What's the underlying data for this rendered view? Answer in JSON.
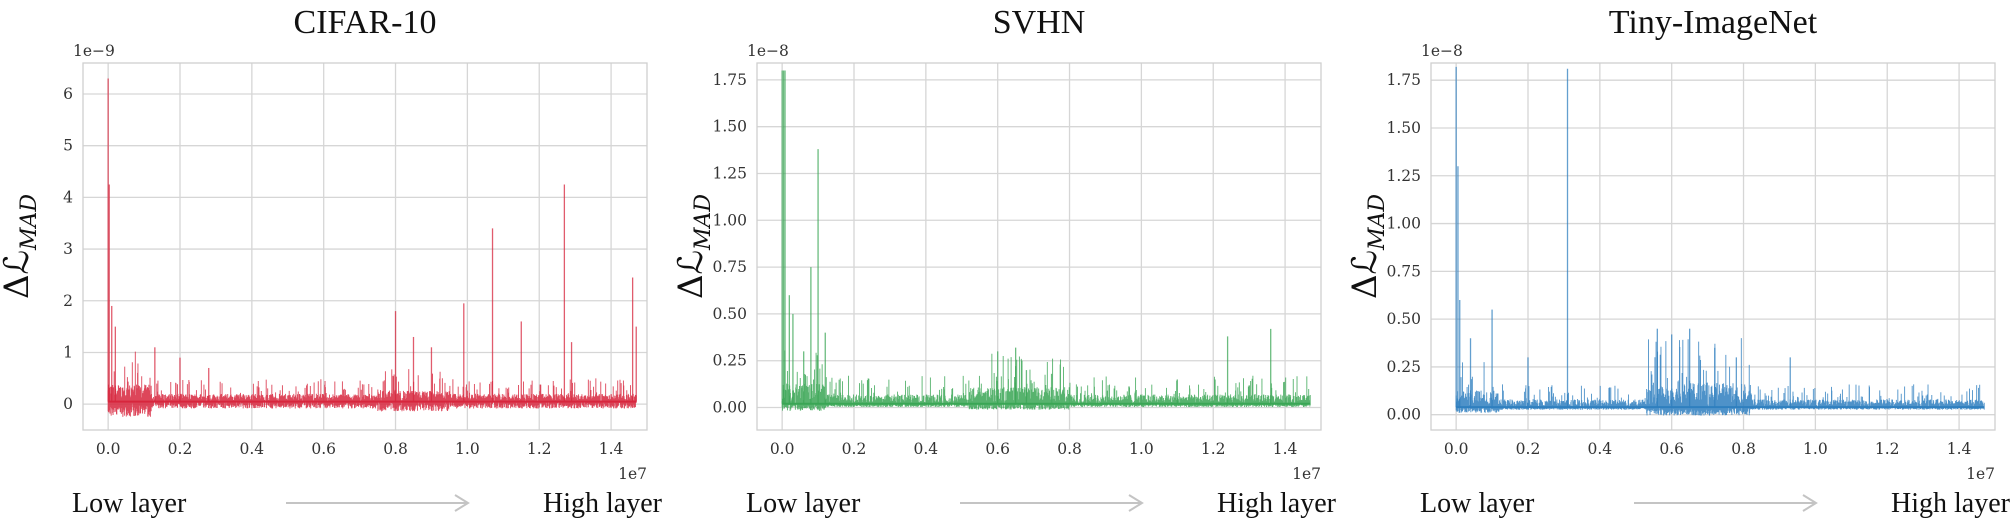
{
  "chart_data": [
    {
      "type": "line",
      "title": "CIFAR-10",
      "ylabel": "ΔℒMAD",
      "y_multiplier": "1e−9",
      "x_multiplier": "1e7",
      "xlim": [
        -0.07,
        1.5
      ],
      "ylim": [
        -0.5,
        6.6
      ],
      "xticks": [
        0.0,
        0.2,
        0.4,
        0.6,
        0.8,
        1.0,
        1.2,
        1.4
      ],
      "xtick_labels": [
        "0.0",
        "0.2",
        "0.4",
        "0.6",
        "0.8",
        "1.0",
        "1.2",
        "1.4"
      ],
      "yticks": [
        0,
        1,
        2,
        3,
        4,
        5,
        6
      ],
      "ytick_labels": [
        "0",
        "1",
        "2",
        "3",
        "4",
        "5",
        "6"
      ],
      "grid": true,
      "color": "#d7263d",
      "baseline": 0.05,
      "noise": 0.15,
      "x_end": 1.47,
      "peaks": [
        {
          "x": 0.0,
          "y": 6.3
        },
        {
          "x": 0.003,
          "y": 4.25
        },
        {
          "x": 0.01,
          "y": 1.9
        },
        {
          "x": 0.02,
          "y": 1.5
        },
        {
          "x": 0.13,
          "y": 1.1
        },
        {
          "x": 0.2,
          "y": 0.9
        },
        {
          "x": 0.28,
          "y": 0.7
        },
        {
          "x": 0.8,
          "y": 1.8
        },
        {
          "x": 0.85,
          "y": 1.3
        },
        {
          "x": 0.9,
          "y": 1.1
        },
        {
          "x": 0.99,
          "y": 1.95
        },
        {
          "x": 1.07,
          "y": 3.4
        },
        {
          "x": 1.15,
          "y": 1.6
        },
        {
          "x": 1.27,
          "y": 4.25
        },
        {
          "x": 1.29,
          "y": 1.2
        },
        {
          "x": 1.46,
          "y": 2.45
        },
        {
          "x": 1.47,
          "y": 1.5
        }
      ]
    },
    {
      "type": "line",
      "title": "SVHN",
      "ylabel": "ΔℒMAD",
      "y_multiplier": "1e−8",
      "x_multiplier": "1e7",
      "xlim": [
        -0.07,
        1.5
      ],
      "ylim": [
        -0.12,
        1.84
      ],
      "xticks": [
        0.0,
        0.2,
        0.4,
        0.6,
        0.8,
        1.0,
        1.2,
        1.4
      ],
      "xtick_labels": [
        "0.0",
        "0.2",
        "0.4",
        "0.6",
        "0.8",
        "1.0",
        "1.2",
        "1.4"
      ],
      "yticks": [
        0.0,
        0.25,
        0.5,
        0.75,
        1.0,
        1.25,
        1.5,
        1.75
      ],
      "ytick_labels": [
        "0.00",
        "0.25",
        "0.50",
        "0.75",
        "1.00",
        "1.25",
        "1.50",
        "1.75"
      ],
      "grid": true,
      "color": "#3aa655",
      "baseline": 0.02,
      "noise": 0.05,
      "x_end": 1.47,
      "peaks": [
        {
          "x": 0.0,
          "y": 1.8
        },
        {
          "x": 0.004,
          "y": 1.8
        },
        {
          "x": 0.008,
          "y": 1.8
        },
        {
          "x": 0.02,
          "y": 0.6
        },
        {
          "x": 0.03,
          "y": 0.5
        },
        {
          "x": 0.06,
          "y": 0.3
        },
        {
          "x": 0.08,
          "y": 0.75
        },
        {
          "x": 0.1,
          "y": 1.38
        },
        {
          "x": 0.12,
          "y": 0.4
        },
        {
          "x": 0.6,
          "y": 0.3
        },
        {
          "x": 0.65,
          "y": 0.32
        },
        {
          "x": 0.68,
          "y": 0.2
        },
        {
          "x": 0.75,
          "y": 0.18
        },
        {
          "x": 1.1,
          "y": 0.15
        },
        {
          "x": 1.24,
          "y": 0.38
        },
        {
          "x": 1.36,
          "y": 0.42
        }
      ]
    },
    {
      "type": "line",
      "title": "Tiny-ImageNet",
      "ylabel": "ΔℒMAD",
      "y_multiplier": "1e−8",
      "x_multiplier": "1e7",
      "xlim": [
        -0.07,
        1.5
      ],
      "ylim": [
        -0.08,
        1.84
      ],
      "xticks": [
        0.0,
        0.2,
        0.4,
        0.6,
        0.8,
        1.0,
        1.2,
        1.4
      ],
      "xtick_labels": [
        "0.0",
        "0.2",
        "0.4",
        "0.6",
        "0.8",
        "1.0",
        "1.2",
        "1.4"
      ],
      "yticks": [
        0.0,
        0.25,
        0.5,
        0.75,
        1.0,
        1.25,
        1.5,
        1.75
      ],
      "ytick_labels": [
        "0.00",
        "0.25",
        "0.50",
        "0.75",
        "1.00",
        "1.25",
        "1.50",
        "1.75"
      ],
      "grid": true,
      "color": "#2f7fbf",
      "baseline": 0.04,
      "noise": 0.04,
      "x_end": 1.47,
      "peaks": [
        {
          "x": 0.0,
          "y": 1.82
        },
        {
          "x": 0.005,
          "y": 1.3
        },
        {
          "x": 0.01,
          "y": 0.6
        },
        {
          "x": 0.04,
          "y": 0.4
        },
        {
          "x": 0.1,
          "y": 0.55
        },
        {
          "x": 0.2,
          "y": 0.3
        },
        {
          "x": 0.31,
          "y": 1.81
        },
        {
          "x": 0.56,
          "y": 0.45
        },
        {
          "x": 0.6,
          "y": 0.42
        },
        {
          "x": 0.65,
          "y": 0.45
        },
        {
          "x": 0.72,
          "y": 0.35
        },
        {
          "x": 0.78,
          "y": 0.3
        },
        {
          "x": 0.93,
          "y": 0.3
        }
      ]
    }
  ],
  "footer": {
    "low_label": "Low layer",
    "high_label": "High layer"
  }
}
